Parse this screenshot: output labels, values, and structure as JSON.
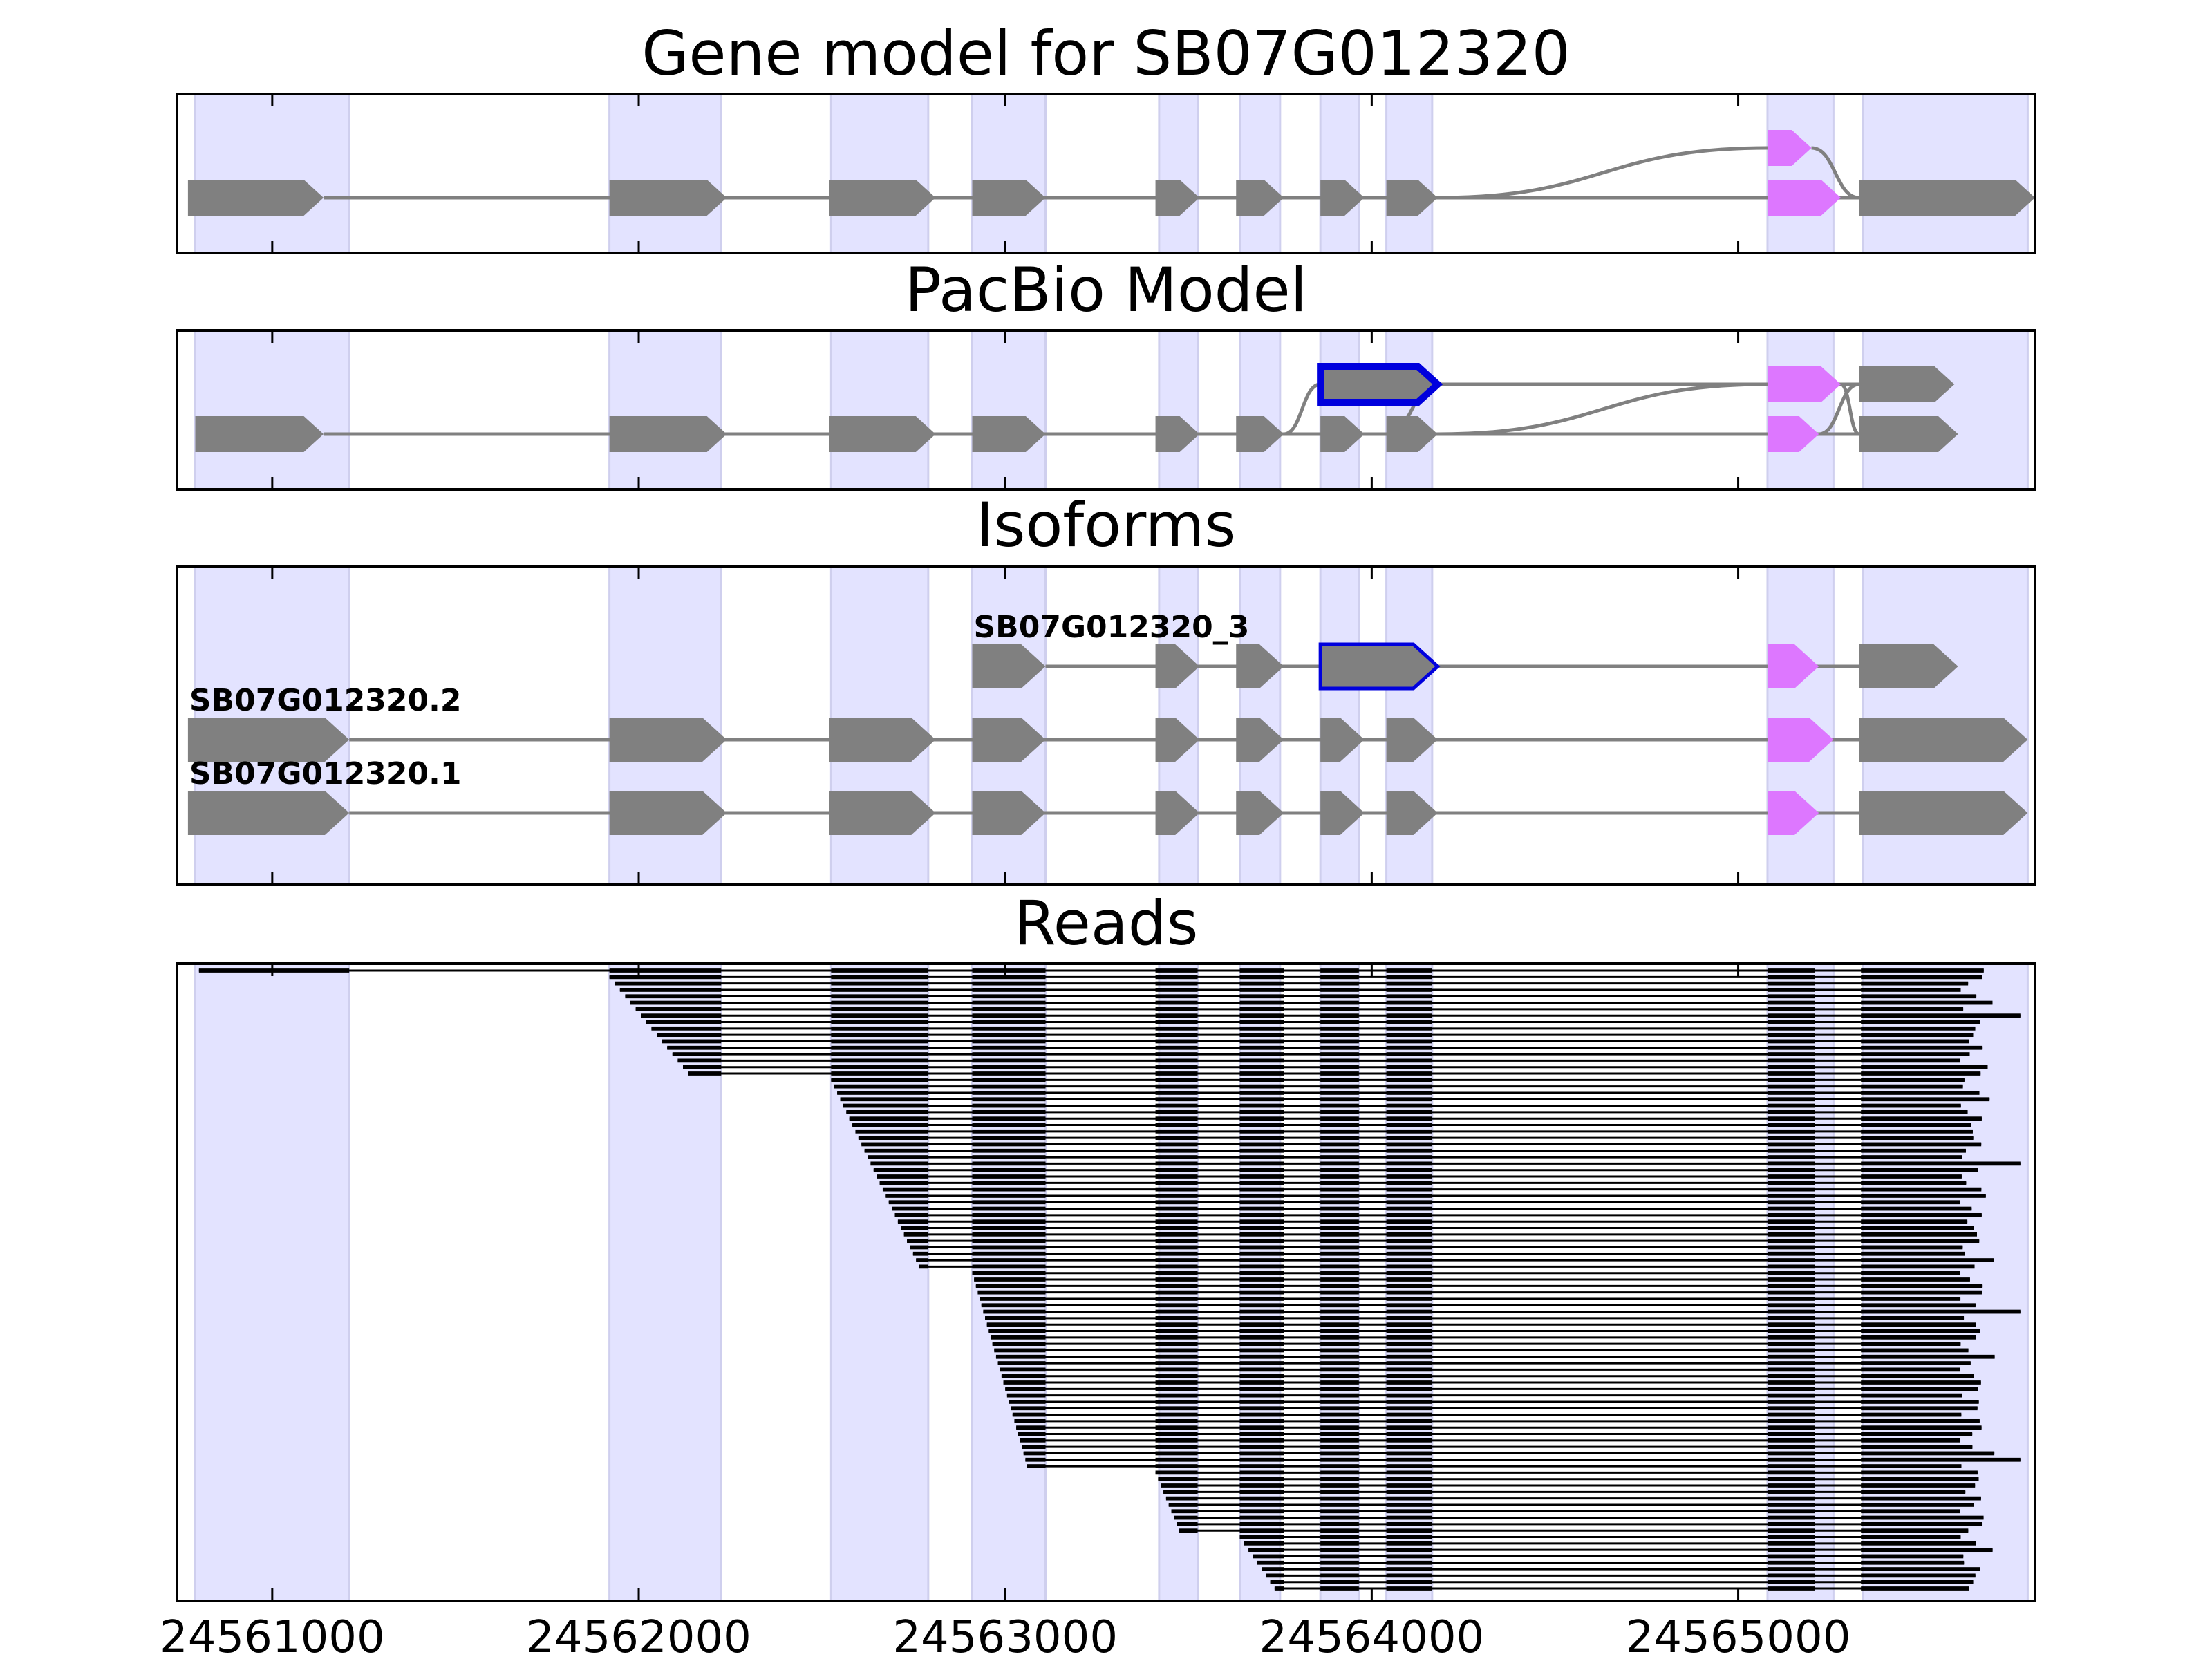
{
  "chart_data": {
    "type": "gene-structure",
    "xaxis": {
      "range": [
        24560740,
        24565810
      ],
      "ticks": [
        24561000,
        24562000,
        24563000,
        24564000,
        24565000
      ],
      "tick_labels": [
        "24561000",
        "24562000",
        "24563000",
        "24564000",
        "24565000"
      ]
    },
    "colors": {
      "exon": "#808080",
      "alt_exon": "#dd77ff",
      "novel_exon_edge": "#0000dd",
      "shade": "#e3e3ff",
      "line": "#808080",
      "read": "#000000"
    },
    "shaded_regions": [
      [
        24560790,
        24561210
      ],
      [
        24561920,
        24562225
      ],
      [
        24562525,
        24562790
      ],
      [
        24562910,
        24563110
      ],
      [
        24563420,
        24563525
      ],
      [
        24563640,
        24563750
      ],
      [
        24563860,
        24563965
      ],
      [
        24564040,
        24564165
      ],
      [
        24565080,
        24565260
      ],
      [
        24565340,
        24565790
      ]
    ],
    "panels": [
      {
        "title": "Gene model for SB07G012320",
        "tracks": [
          {
            "exons": [
              [
                24561730,
                24561740
              ]
            ],
            "hidden": true
          },
          {
            "exons": [
              [
                24565080,
                24565200
              ]
            ],
            "alt": [
              0
            ]
          },
          {
            "exons": [
              [
                24560770,
                24561140
              ],
              [
                24561920,
                24562240
              ],
              [
                24562520,
                24562810
              ],
              [
                24562910,
                24563110
              ],
              [
                24563410,
                24563530
              ],
              [
                24563630,
                24563760
              ],
              [
                24563860,
                24563980
              ],
              [
                24564040,
                24564180
              ],
              [
                24565080,
                24565280
              ],
              [
                24565330,
                24565810
              ]
            ],
            "alt": [
              8
            ]
          }
        ],
        "connectors": [
          [
            2,
            7,
            1,
            0,
            "s"
          ],
          [
            1,
            0,
            2,
            9,
            "s"
          ]
        ]
      },
      {
        "title": "PacBio Model",
        "tracks": [
          {
            "exons": [
              [
                24561730,
                24561740
              ]
            ],
            "hidden": true
          },
          {
            "exons": [
              [
                24563860,
                24564180
              ],
              [
                24565080,
                24565280
              ],
              [
                24565330,
                24565590
              ]
            ],
            "alt": [
              1
            ],
            "novel": [
              0
            ]
          },
          {
            "exons": [
              [
                24560790,
                24561140
              ],
              [
                24561920,
                24562240
              ],
              [
                24562520,
                24562810
              ],
              [
                24562910,
                24563110
              ],
              [
                24563410,
                24563530
              ],
              [
                24563630,
                24563760
              ],
              [
                24563860,
                24563980
              ],
              [
                24564040,
                24564180
              ],
              [
                24565080,
                24565220
              ],
              [
                24565330,
                24565600
              ]
            ],
            "alt": [
              8
            ]
          }
        ],
        "connectors": [
          [
            2,
            5,
            1,
            0,
            "s"
          ],
          [
            1,
            0,
            2,
            7,
            "x"
          ],
          [
            2,
            7,
            1,
            1,
            "x"
          ],
          [
            1,
            1,
            2,
            9,
            "s"
          ],
          [
            2,
            8,
            1,
            2,
            "s"
          ]
        ]
      },
      {
        "title": "Isoforms",
        "tracks": [
          {
            "exons": [
              [
                24561730,
                24561740
              ]
            ],
            "hidden": true
          },
          {
            "label": "SB07G012320_3",
            "exons": [
              [
                24562910,
                24563110
              ],
              [
                24563410,
                24563530
              ],
              [
                24563630,
                24563760
              ],
              [
                24563860,
                24564180
              ],
              [
                24565080,
                24565220
              ],
              [
                24565330,
                24565600
              ]
            ],
            "alt": [
              4
            ],
            "novel": [
              3
            ]
          },
          {
            "label": "SB07G012320.2",
            "exons": [
              [
                24560770,
                24561210
              ],
              [
                24561920,
                24562240
              ],
              [
                24562520,
                24562810
              ],
              [
                24562910,
                24563110
              ],
              [
                24563410,
                24563530
              ],
              [
                24563630,
                24563760
              ],
              [
                24563860,
                24563980
              ],
              [
                24564040,
                24564180
              ],
              [
                24565080,
                24565260
              ],
              [
                24565330,
                24565790
              ]
            ],
            "alt": [
              8
            ]
          },
          {
            "label": "SB07G012320.1",
            "exons": [
              [
                24560770,
                24561210
              ],
              [
                24561920,
                24562240
              ],
              [
                24562520,
                24562810
              ],
              [
                24562910,
                24563110
              ],
              [
                24563410,
                24563530
              ],
              [
                24563630,
                24563760
              ],
              [
                24563860,
                24563980
              ],
              [
                24564040,
                24564180
              ],
              [
                24565080,
                24565220
              ],
              [
                24565330,
                24565790
              ]
            ],
            "alt": [
              8
            ]
          }
        ],
        "connectors": []
      },
      {
        "title": "Reads"
      }
    ],
    "reads": {
      "count": 97,
      "exons": [
        [
          24561920,
          24562225
        ],
        [
          24562525,
          24562790
        ],
        [
          24562910,
          24563110
        ],
        [
          24563410,
          24563525
        ],
        [
          24563640,
          24563760
        ],
        [
          24563860,
          24563965
        ],
        [
          24564040,
          24564165
        ],
        [
          24565080,
          24565210
        ]
      ],
      "first_read": {
        "first_exon": [
          24560800,
          24561210
        ],
        "start_exon_index": 0
      },
      "start_groups": [
        {
          "start_exon_index": 0,
          "count": 16,
          "first_start": 24561920,
          "last_start": 24562135
        },
        {
          "start_exon_index": 1,
          "count": 30,
          "first_start": 24562525,
          "last_start": 24562765
        },
        {
          "start_exon_index": 2,
          "count": 31,
          "first_start": 24562910,
          "last_start": 24563060
        },
        {
          "start_exon_index": 3,
          "count": 10,
          "first_start": 24563410,
          "last_start": 24563475
        },
        {
          "start_exon_index": 4,
          "count": 9,
          "first_start": 24563640,
          "last_start": 24563735
        }
      ],
      "last_exon_start": 24565335,
      "last_exon_end_min": 24565600,
      "last_exon_end_max": 24565700,
      "long_read_end": 24565770
    }
  }
}
